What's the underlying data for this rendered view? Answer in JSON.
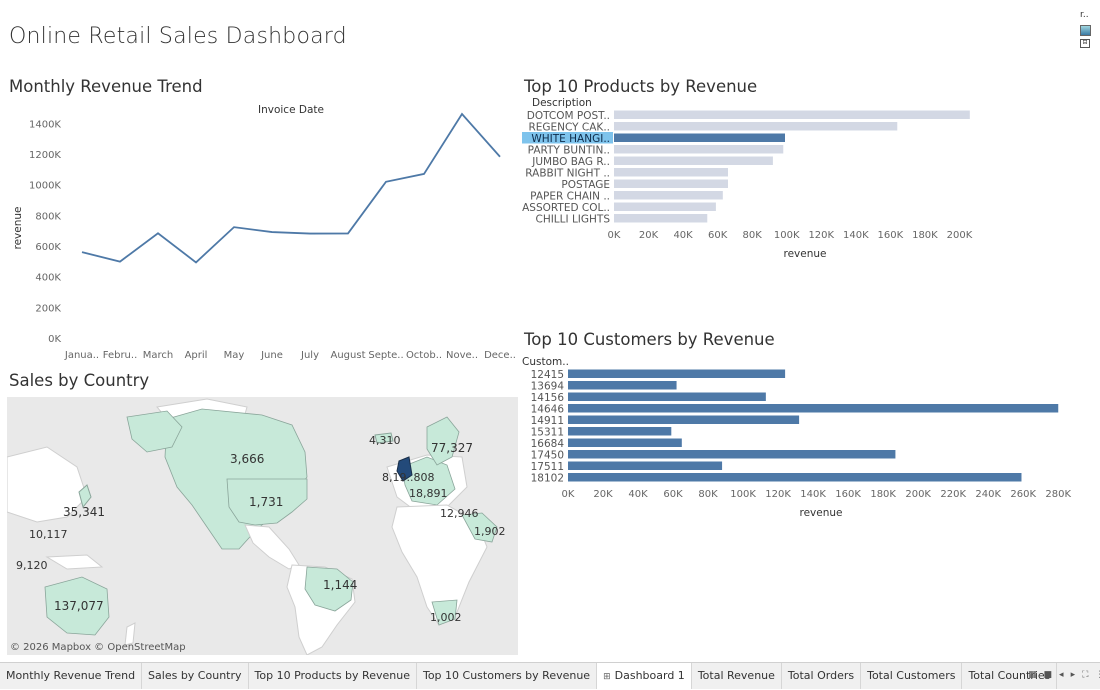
{
  "dashboard": {
    "title": "Online Retail Sales Dashboard"
  },
  "legend": {
    "label": "r.."
  },
  "line_chart": {
    "title": "Monthly Revenue Trend"
  },
  "products_chart": {
    "title": "Top 10 Products by Revenue"
  },
  "customers_chart": {
    "title": "Top 10 Customers by Revenue"
  },
  "map_panel": {
    "title": "Sales by Country",
    "credit": "© 2026 Mapbox © OpenStreetMap"
  },
  "chart_data": [
    {
      "type": "line",
      "xlabel": "Invoice Date",
      "ylabel": "revenue",
      "x": [
        "Janua..",
        "Febru..",
        "March",
        "April",
        "May",
        "June",
        "July",
        "August",
        "Septe..",
        "Octob..",
        "Nove..",
        "Dece.."
      ],
      "values": [
        560000,
        498000,
        683000,
        493000,
        723000,
        691000,
        681000,
        682000,
        1019000,
        1070000,
        1461000,
        1182000
      ],
      "yticks": [
        "0K",
        "200K",
        "400K",
        "600K",
        "800K",
        "1000K",
        "1200K",
        "1400K"
      ],
      "ylim": [
        0,
        1500000
      ],
      "color": "#4e79a7",
      "grid": false
    },
    {
      "type": "bar",
      "orientation": "horizontal",
      "ylabel": "Description",
      "xlabel": "revenue",
      "categories": [
        "DOTCOM POST..",
        "REGENCY CAK..",
        "WHITE HANGI..",
        "PARTY BUNTIN..",
        "JUMBO BAG R..",
        "RABBIT NIGHT ..",
        "POSTAGE",
        "PAPER CHAIN ..",
        "ASSORTED COL..",
        "CHILLI LIGHTS"
      ],
      "values": [
        206000,
        164000,
        99000,
        98000,
        92000,
        66000,
        66000,
        63000,
        59000,
        54000
      ],
      "highlighted": "WHITE HANGI..",
      "xticks": [
        "0K",
        "20K",
        "40K",
        "60K",
        "80K",
        "100K",
        "120K",
        "140K",
        "160K",
        "180K",
        "200K"
      ],
      "xlim": [
        0,
        220000
      ],
      "colors": {
        "bar": "#d3d8e4",
        "highlight": "#4e79a7",
        "label_highlight": "#7ec3ec"
      }
    },
    {
      "type": "bar",
      "orientation": "horizontal",
      "ylabel": "Custom..",
      "xlabel": "revenue",
      "categories": [
        "12415",
        "13694",
        "14156",
        "14646",
        "14911",
        "15311",
        "16684",
        "17450",
        "17511",
        "18102"
      ],
      "values": [
        124000,
        62000,
        113000,
        280000,
        132000,
        59000,
        65000,
        187000,
        88000,
        259000
      ],
      "xticks": [
        "0K",
        "20K",
        "40K",
        "60K",
        "80K",
        "100K",
        "120K",
        "140K",
        "160K",
        "180K",
        "200K",
        "220K",
        "240K",
        "260K",
        "280K"
      ],
      "xlim": [
        0,
        285000
      ],
      "color": "#4e79a7"
    }
  ],
  "map_labels": [
    {
      "label": "3,666"
    },
    {
      "label": "1,731"
    },
    {
      "label": "35,341"
    },
    {
      "label": "10,117"
    },
    {
      "label": "9,120"
    },
    {
      "label": "137,077"
    },
    {
      "label": "1,144"
    },
    {
      "label": "4,310"
    },
    {
      "label": "77,327"
    },
    {
      "label": "8,19..808"
    },
    {
      "label": "18,891"
    },
    {
      "label": "12,946"
    },
    {
      "label": "1,902"
    },
    {
      "label": "1,002"
    }
  ],
  "tabs": [
    {
      "label": "Monthly Revenue Trend",
      "active": false
    },
    {
      "label": "Sales by Country",
      "active": false
    },
    {
      "label": "Top 10 Products by Revenue",
      "active": false
    },
    {
      "label": "Top 10 Customers by Revenue",
      "active": false
    },
    {
      "label": "Dashboard 1",
      "active": true,
      "icon": "grid-icon"
    },
    {
      "label": "Total Revenue",
      "active": false
    },
    {
      "label": "Total Orders",
      "active": false
    },
    {
      "label": "Total Customers",
      "active": false
    },
    {
      "label": "Total Countries",
      "active": false
    }
  ],
  "tab_controls": [
    {
      "icon": "grid-view-icon"
    },
    {
      "icon": "filmstrip-icon"
    },
    {
      "icon": "prev-sheet-icon"
    },
    {
      "icon": "next-sheet-icon"
    },
    {
      "icon": "fit-icon"
    },
    {
      "icon": "expand-icon"
    }
  ]
}
